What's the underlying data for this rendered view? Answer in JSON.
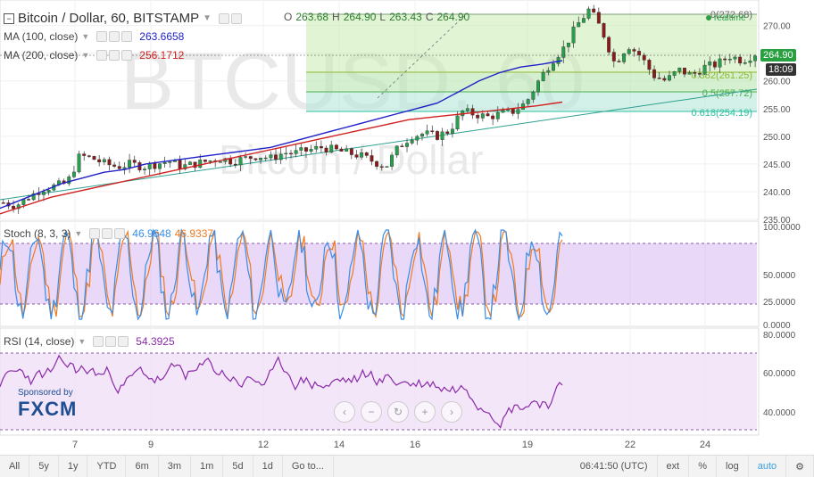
{
  "header": {
    "symbol": "Bitcoin / Dollar, 60, BITSTAMP",
    "ohlc": {
      "o_label": "O",
      "o": "263.68",
      "h_label": "H",
      "h": "264.90",
      "l_label": "L",
      "l": "263.43",
      "c_label": "C",
      "c": "264.90"
    },
    "ma100": {
      "label": "MA (100, close)",
      "value": "263.6658",
      "color": "#2020c8"
    },
    "ma200": {
      "label": "MA (200, close)",
      "value": "256.1712",
      "color": "#d02020"
    }
  },
  "watermark": {
    "symbol": "BTCUSD, 60",
    "name": "Bitcoin / Dollar"
  },
  "price_axis": {
    "ticks": [
      "270.00",
      "265.00",
      "260.00",
      "255.00",
      "250.00",
      "245.00",
      "240.00",
      "235.00"
    ],
    "last_price": "264.90",
    "countdown": "18:09"
  },
  "fib": {
    "levels": [
      "0(272.68)",
      "0.382(261.25)",
      "0.5(257.72)",
      "0.618(254.19)"
    ],
    "realtime_label": "realtime"
  },
  "stoch": {
    "label": "Stoch (8, 3, 3)",
    "k": "46.9648",
    "d": "46.9337",
    "k_color": "#3a8ee6",
    "d_color": "#f07a20",
    "ticks": [
      "100.0000",
      "50.0000",
      "25.0000",
      "0.0000"
    ]
  },
  "rsi": {
    "label": "RSI (14, close)",
    "value": "54.3925",
    "color": "#8a2aa8",
    "ticks": [
      "80.0000",
      "60.0000",
      "40.0000"
    ]
  },
  "sponsor": {
    "small": "Sponsored by",
    "brand": "FXCM"
  },
  "time_axis": [
    "7",
    "9",
    "12",
    "14",
    "16",
    "19",
    "22",
    "24"
  ],
  "toolbar": {
    "items": [
      "All",
      "5y",
      "1y",
      "YTD",
      "6m",
      "3m",
      "1m",
      "5d",
      "1d",
      "Go to..."
    ],
    "clock": "06:41:50 (UTC)",
    "ext": "ext",
    "pct": "%",
    "log": "log",
    "auto": "auto"
  },
  "chart_data": {
    "type": "candlestick",
    "x_ticks": [
      "7",
      "9",
      "12",
      "14",
      "16",
      "19",
      "22",
      "24"
    ],
    "ylim": [
      235,
      273
    ],
    "fib_levels": [
      {
        "label": "0",
        "value": 272.68
      },
      {
        "label": "0.382",
        "value": 261.25
      },
      {
        "label": "0.5",
        "value": 257.72
      },
      {
        "label": "0.618",
        "value": 254.19
      }
    ],
    "price_path": [
      238,
      237.5,
      239,
      240.5,
      241,
      241.5,
      246.5,
      246,
      245,
      244.5,
      245,
      244.5,
      245,
      245.5,
      244.5,
      245,
      245.5,
      246,
      245.5,
      246,
      246.5,
      246,
      247,
      247,
      247.5,
      248,
      247.5,
      247,
      246.5,
      245.5,
      244.5,
      248,
      250,
      250.5,
      250,
      251,
      254.5,
      254,
      253.5,
      254,
      254.5,
      256,
      260,
      263.5,
      266,
      270,
      273,
      269,
      263,
      266.5,
      264.5,
      261,
      260,
      262,
      261,
      262.5,
      263,
      264.5,
      263.7,
      264.9
    ],
    "ma100_path": [
      237,
      238.5,
      240,
      241.5,
      242.5,
      243.5,
      244,
      245,
      245.5,
      246,
      246.5,
      247,
      247.5,
      248,
      249,
      250,
      251,
      252,
      253,
      254,
      255,
      256,
      258,
      260,
      261.5,
      262.5,
      263,
      263.6658
    ],
    "ma200_path": [
      236,
      237.5,
      239,
      240,
      241,
      242,
      243,
      244,
      245,
      246,
      247,
      248,
      249,
      250,
      251,
      252,
      253,
      253.5,
      254,
      254.5,
      255,
      255.5,
      256.1712
    ]
  }
}
